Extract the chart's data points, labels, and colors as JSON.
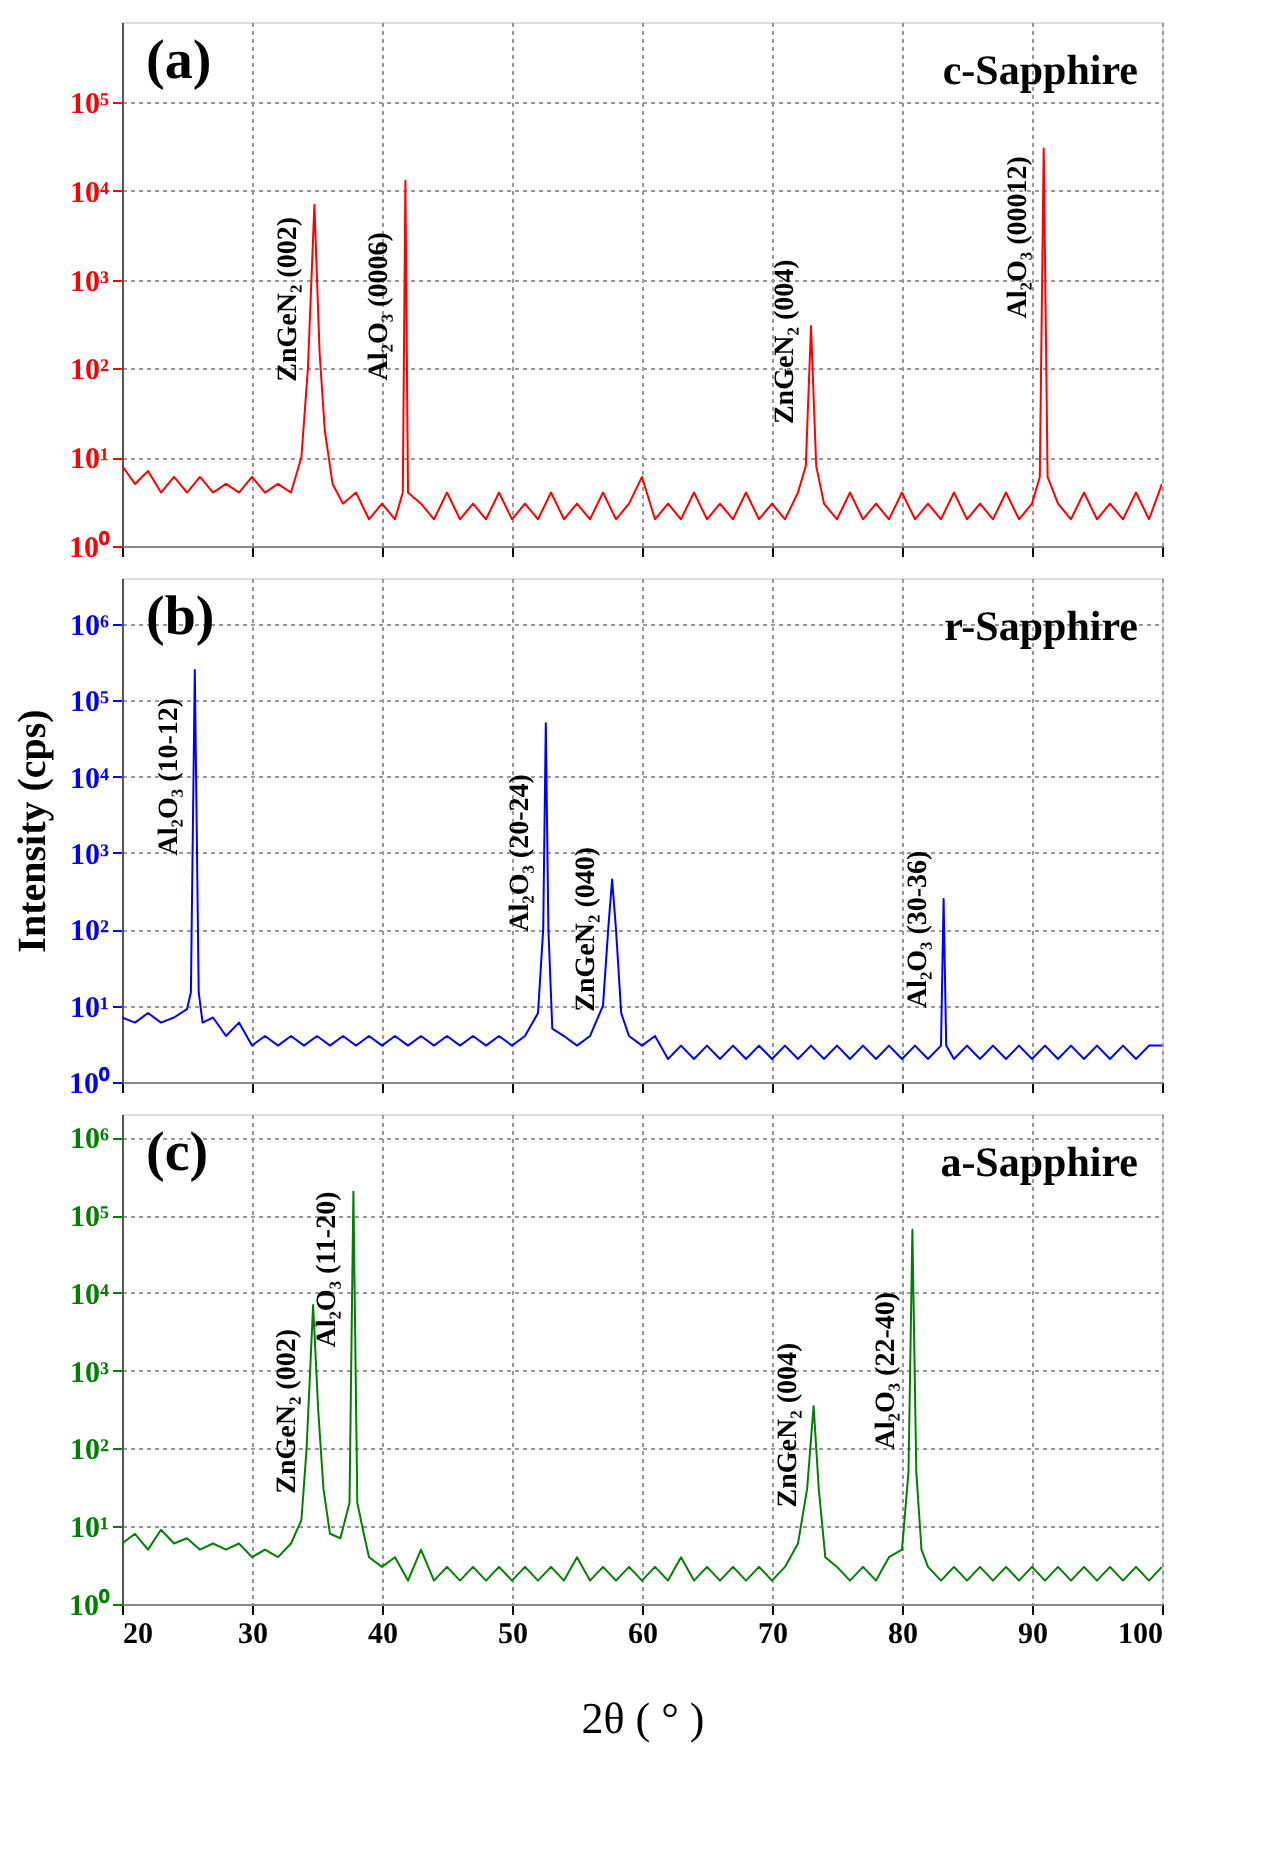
{
  "chart_data": [
    {
      "type": "line",
      "log": true,
      "grid": true,
      "tick_labels": "y",
      "xlim": [
        20,
        100
      ],
      "xticks": [
        20,
        30,
        40,
        50,
        60,
        70,
        80,
        90,
        100
      ],
      "ylim": [
        1,
        800000
      ],
      "yticks": [
        {
          "value": 1,
          "label": "10⁰"
        },
        {
          "value": 10,
          "label": "10¹"
        },
        {
          "value": 100,
          "label": "10²"
        },
        {
          "value": 1000,
          "label": "10³"
        },
        {
          "value": 10000,
          "label": "10⁴"
        },
        {
          "value": 100000,
          "label": "10⁵"
        }
      ],
      "annotations": [
        "(a)",
        "c-Sapphire",
        {
          "text": "ZnGeN₂ (002)",
          "x": 34.8,
          "y": 600
        },
        {
          "text": "Al₂O₃ (0006)",
          "x": 41.8,
          "y": 500
        },
        {
          "text": "ZnGeN₂ (004)",
          "x": 73.0,
          "y": 200
        },
        {
          "text": "Al₂O₃ (00012)",
          "x": 90.9,
          "y": 3000
        }
      ],
      "series": [
        {
          "color": "#ff0000",
          "x": [
            20,
            21,
            22,
            23,
            24,
            25,
            26,
            27,
            28,
            29,
            30,
            31,
            32,
            33,
            33.8,
            34.3,
            34.8,
            35.2,
            35.6,
            36.2,
            37,
            38,
            39,
            40,
            41,
            41.6,
            41.8,
            42.0,
            43,
            44,
            45,
            46,
            47,
            48,
            49,
            50,
            51,
            52,
            53,
            54,
            55,
            56,
            57,
            58,
            59,
            60,
            61,
            62,
            63,
            64,
            65,
            66,
            67,
            68,
            69,
            70,
            71,
            72,
            72.6,
            73.0,
            73.4,
            74,
            75,
            76,
            77,
            78,
            79,
            80,
            81,
            82,
            83,
            84,
            85,
            86,
            87,
            88,
            89,
            90,
            90.6,
            90.9,
            91.2,
            92,
            93,
            94,
            95,
            96,
            97,
            98,
            99,
            100
          ],
          "values": [
            8,
            5,
            7,
            4,
            6,
            4,
            6,
            4,
            5,
            4,
            6,
            4,
            5,
            4,
            10,
            100,
            7000,
            150,
            20,
            5,
            3,
            4,
            2,
            3,
            2,
            4,
            13000,
            4,
            3,
            2,
            4,
            2,
            3,
            2,
            4,
            2,
            3,
            2,
            4,
            2,
            3,
            2,
            4,
            2,
            3,
            6,
            2,
            3,
            2,
            4,
            2,
            3,
            2,
            4,
            2,
            3,
            2,
            4,
            8,
            300,
            8,
            3,
            2,
            4,
            2,
            3,
            2,
            4,
            2,
            3,
            2,
            4,
            2,
            3,
            2,
            4,
            2,
            3,
            6,
            30000,
            6,
            3,
            2,
            4,
            2,
            3,
            2,
            4,
            2,
            5
          ]
        }
      ]
    },
    {
      "type": "line",
      "log": true,
      "grid": true,
      "tick_labels": "y",
      "ylabel": "Intensity (cps)",
      "xlim": [
        20,
        100
      ],
      "xticks": [
        20,
        30,
        40,
        50,
        60,
        70,
        80,
        90,
        100
      ],
      "ylim": [
        1,
        4000000
      ],
      "yticks": [
        {
          "value": 1,
          "label": "10⁰"
        },
        {
          "value": 10,
          "label": "10¹"
        },
        {
          "value": 100,
          "label": "10²"
        },
        {
          "value": 1000,
          "label": "10³"
        },
        {
          "value": 10000,
          "label": "10⁴"
        },
        {
          "value": 100000,
          "label": "10⁵"
        },
        {
          "value": 1000000,
          "label": "10⁶"
        }
      ],
      "annotations": [
        "(b)",
        "r-Sapphire",
        {
          "text": "Al₂O₃ (10-12)",
          "x": 25.6,
          "y": 10000
        },
        {
          "text": "Al₂O₃ (20-24)",
          "x": 52.6,
          "y": 1000
        },
        {
          "text": "ZnGeN₂ (040)",
          "x": 57.7,
          "y": 100
        },
        {
          "text": "Al₂O₃ (30-36)",
          "x": 83.2,
          "y": 100
        }
      ],
      "series": [
        {
          "color": "#0000ff",
          "x": [
            20,
            21,
            22,
            23,
            24,
            25,
            25.3,
            25.6,
            25.9,
            26.2,
            27,
            28,
            29,
            30,
            31,
            32,
            33,
            34,
            35,
            36,
            37,
            38,
            39,
            40,
            41,
            42,
            43,
            44,
            45,
            46,
            47,
            48,
            49,
            50,
            51,
            52,
            52.4,
            52.6,
            52.8,
            53.1,
            54,
            55,
            56,
            57,
            57.4,
            57.7,
            58.0,
            58.4,
            59,
            60,
            61,
            62,
            63,
            64,
            65,
            66,
            67,
            68,
            69,
            70,
            71,
            72,
            73,
            74,
            75,
            76,
            77,
            78,
            79,
            80,
            81,
            82,
            83,
            83.2,
            83.4,
            84,
            85,
            86,
            87,
            88,
            89,
            90,
            91,
            92,
            93,
            94,
            95,
            96,
            97,
            98,
            99,
            100
          ],
          "values": [
            7,
            6,
            8,
            6,
            7,
            9,
            15,
            250000,
            15,
            6,
            7,
            4,
            6,
            3,
            4,
            3,
            4,
            3,
            4,
            3,
            4,
            3,
            4,
            3,
            4,
            3,
            4,
            3,
            4,
            3,
            4,
            3,
            4,
            3,
            4,
            8,
            100,
            50000,
            100,
            5,
            4,
            3,
            4,
            10,
            100,
            450,
            100,
            8,
            4,
            3,
            4,
            2,
            3,
            2,
            3,
            2,
            3,
            2,
            3,
            2,
            3,
            2,
            3,
            2,
            3,
            2,
            3,
            2,
            3,
            2,
            3,
            2,
            3,
            250,
            3,
            2,
            3,
            2,
            3,
            2,
            3,
            2,
            3,
            2,
            3,
            2,
            3,
            2,
            3,
            2,
            3,
            3
          ]
        }
      ]
    },
    {
      "type": "line",
      "log": true,
      "grid": true,
      "xlabel": "2θ ( ° )",
      "xlim": [
        20,
        100
      ],
      "xticks": [
        20,
        30,
        40,
        50,
        60,
        70,
        80,
        90,
        100
      ],
      "ylim": [
        1,
        2000000
      ],
      "yticks": [
        {
          "value": 1,
          "label": "10⁰"
        },
        {
          "value": 10,
          "label": "10¹"
        },
        {
          "value": 100,
          "label": "10²"
        },
        {
          "value": 1000,
          "label": "10³"
        },
        {
          "value": 10000,
          "label": "10⁴"
        },
        {
          "value": 100000,
          "label": "10⁵"
        },
        {
          "value": 1000000,
          "label": "10⁶"
        }
      ],
      "annotations": [
        "(c)",
        "a-Sapphire",
        {
          "text": "ZnGeN₂ (002)",
          "x": 34.7,
          "y": 300
        },
        {
          "text": "Al₂O₃ (11-20)",
          "x": 37.8,
          "y": 20000
        },
        {
          "text": "ZnGeN₂ (004)",
          "x": 73.2,
          "y": 200
        },
        {
          "text": "Al₂O₃ (22-40)",
          "x": 80.8,
          "y": 1000
        }
      ],
      "series": [
        {
          "color": "#008000",
          "x": [
            20,
            21,
            22,
            23,
            24,
            25,
            26,
            27,
            28,
            29,
            30,
            31,
            32,
            33,
            33.8,
            34.2,
            34.7,
            35.1,
            35.5,
            36,
            36.8,
            37.5,
            37.8,
            38.1,
            38.6,
            39,
            40,
            41,
            42,
            43,
            44,
            45,
            46,
            47,
            48,
            49,
            50,
            51,
            52,
            53,
            54,
            55,
            56,
            57,
            58,
            59,
            60,
            61,
            62,
            63,
            64,
            65,
            66,
            67,
            68,
            69,
            70,
            71,
            72,
            72.7,
            73.2,
            73.6,
            74.1,
            75,
            76,
            77,
            78,
            79,
            80,
            80.5,
            80.8,
            81.1,
            81.5,
            82,
            83,
            84,
            85,
            86,
            87,
            88,
            89,
            90,
            91,
            92,
            93,
            94,
            95,
            96,
            97,
            98,
            99,
            100
          ],
          "values": [
            6,
            8,
            5,
            9,
            6,
            7,
            5,
            6,
            5,
            6,
            4,
            5,
            4,
            6,
            12,
            100,
            7000,
            300,
            30,
            8,
            7,
            20,
            200000,
            20,
            8,
            4,
            3,
            4,
            2,
            5,
            2,
            3,
            2,
            3,
            2,
            3,
            2,
            3,
            2,
            3,
            2,
            4,
            2,
            3,
            2,
            3,
            2,
            3,
            2,
            4,
            2,
            3,
            2,
            3,
            2,
            3,
            2,
            3,
            6,
            30,
            350,
            30,
            4,
            3,
            2,
            3,
            2,
            4,
            5,
            50,
            65000,
            50,
            5,
            3,
            2,
            3,
            2,
            3,
            2,
            3,
            2,
            3,
            2,
            3,
            2,
            3,
            2,
            3,
            2,
            3,
            2,
            3
          ]
        }
      ]
    }
  ]
}
